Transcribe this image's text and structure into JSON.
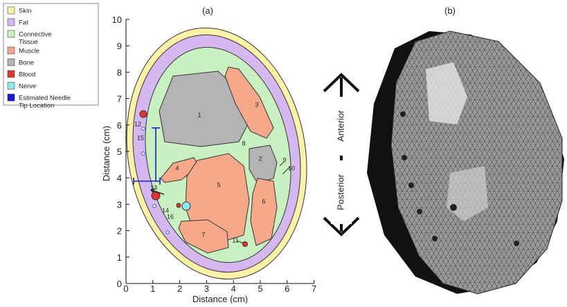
{
  "legend": {
    "items": [
      {
        "label": [
          "Skin"
        ],
        "color": "#fdf3a8"
      },
      {
        "label": [
          "Fat"
        ],
        "color": "#d6b8f0"
      },
      {
        "label": [
          "Connective",
          "Tissue"
        ],
        "color": "#c8f0c0"
      },
      {
        "label": [
          "Muscle"
        ],
        "color": "#f6a98a"
      },
      {
        "label": [
          "Bone"
        ],
        "color": "#b4b4b4"
      },
      {
        "label": [
          "Blood"
        ],
        "color": "#e23232"
      },
      {
        "label": [
          "Nerve"
        ],
        "color": "#8fe8ec"
      },
      {
        "label": [
          "Estimated Needle",
          "Tip Location"
        ],
        "color": "#1a1ad0"
      }
    ]
  },
  "panel_a": {
    "label": "(a)",
    "x_axis": {
      "label": "Distance (cm)",
      "ticks": [
        0,
        1,
        2,
        3,
        4,
        5,
        6,
        7
      ]
    },
    "y_axis": {
      "label": "Distance (cm)",
      "ticks": [
        0,
        1,
        2,
        3,
        4,
        5,
        6,
        7,
        8,
        9,
        10
      ]
    },
    "regions": [
      "1",
      "2",
      "3",
      "4",
      "5",
      "6",
      "7",
      "8",
      "9",
      "10",
      "11",
      "12",
      "13",
      "14",
      "15",
      "16"
    ]
  },
  "panel_b": {
    "label": "(b)",
    "anterior": "Anterior",
    "posterior": "Posterior"
  }
}
